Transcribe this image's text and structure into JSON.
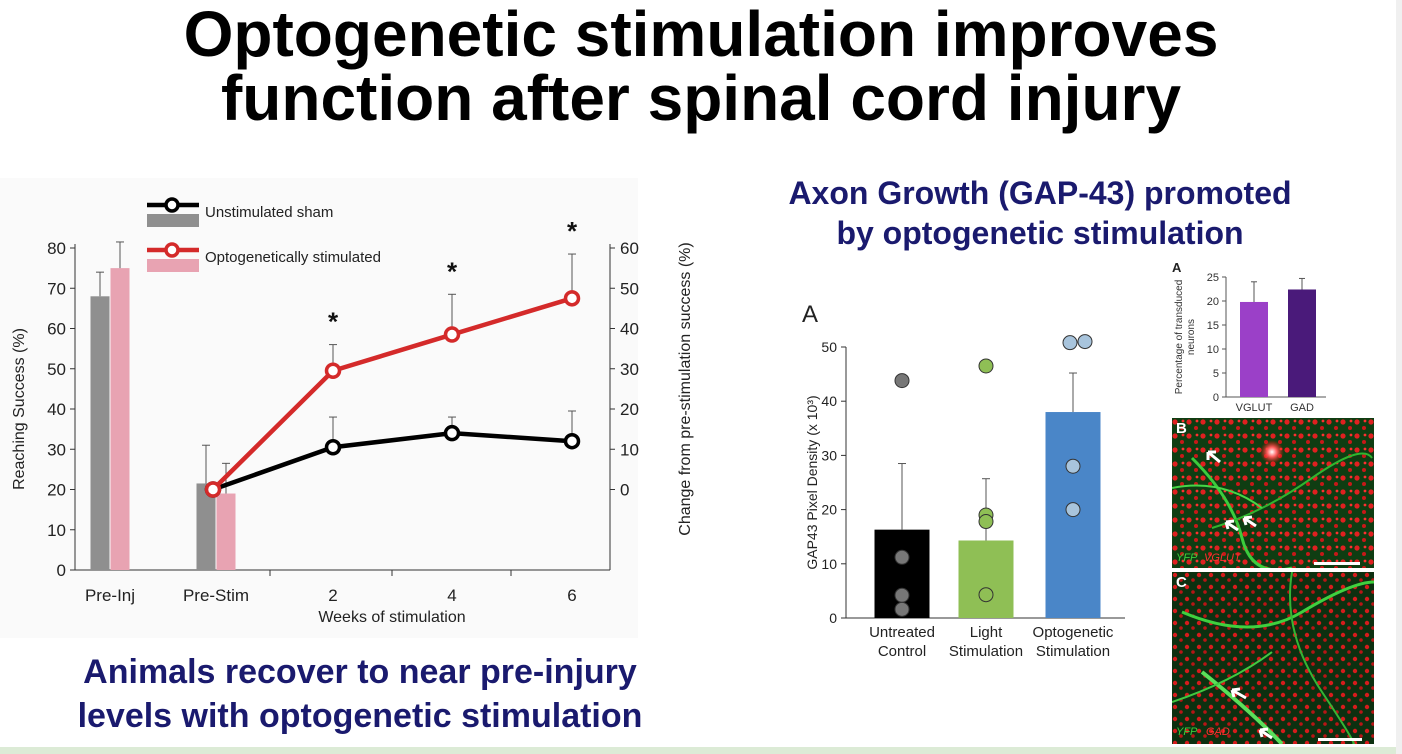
{
  "title": {
    "line1": "Optogenetic stimulation improves",
    "line2": "function after spinal cord injury"
  },
  "left_caption": {
    "line1": "Animals recover to near pre-injury",
    "line2": "levels with optogenetic stimulation"
  },
  "right_heading": {
    "line1": "Axon Growth (GAP-43) promoted",
    "line2": "by optogenetic stimulation"
  },
  "colors": {
    "sham_line": "#000000",
    "stim_line": "#d42a2a",
    "sham_bar": "#8f8f8f",
    "stim_bar": "#e8a3b2",
    "untreated": "#000000",
    "light": "#8fbf55",
    "opto": "#4a86c8",
    "vglut": "#9b40c8",
    "gad": "#4a1a7a",
    "heading": "#1a1a6e"
  },
  "chart_data": [
    {
      "type": "line",
      "legend": [
        "Unstimulated sham",
        "Optogenetically stimulated"
      ],
      "legend_position": "top-left",
      "categories": [
        "Pre-Inj",
        "Pre-Stim",
        "2",
        "4",
        "6"
      ],
      "xlabel": "Weeks of stimulation",
      "ylabel": "Reaching Success (%)",
      "ylabel_right": "Change from pre-stimulation success (%)",
      "ylim": [
        0,
        80
      ],
      "ylim_right": [
        -20,
        60
      ],
      "yticks": [
        0,
        10,
        20,
        30,
        40,
        50,
        60,
        70,
        80
      ],
      "yticks_right": [
        0,
        10,
        20,
        30,
        40,
        50,
        60
      ],
      "grid": false,
      "bars": [
        {
          "series": "Unstimulated sham",
          "categories": [
            "Pre-Inj",
            "Pre-Stim"
          ],
          "values": [
            68,
            21.5
          ],
          "errors": [
            6,
            9.5
          ]
        },
        {
          "series": "Optogenetically stimulated",
          "categories": [
            "Pre-Inj",
            "Pre-Stim"
          ],
          "values": [
            75,
            19
          ],
          "errors": [
            6.5,
            7.5
          ]
        }
      ],
      "series": [
        {
          "name": "Unstimulated sham",
          "x": [
            "Pre-Stim",
            "2",
            "4",
            "6"
          ],
          "values": [
            0,
            10.5,
            14,
            12
          ],
          "errors": [
            0,
            7.5,
            4,
            7.5
          ]
        },
        {
          "name": "Optogenetically stimulated",
          "x": [
            "Pre-Stim",
            "2",
            "4",
            "6"
          ],
          "values": [
            0,
            29.5,
            38.5,
            47.5
          ],
          "errors": [
            0,
            6.5,
            10,
            11
          ]
        }
      ],
      "significance": [
        {
          "x": "2",
          "label": "*"
        },
        {
          "x": "4",
          "label": "*"
        },
        {
          "x": "6",
          "label": "*"
        }
      ]
    },
    {
      "type": "bar",
      "panel_label": "A",
      "categories": [
        "Untreated Control",
        "Light Stimulation",
        "Optogenetic Stimulation"
      ],
      "category_lines": [
        [
          "Untreated",
          "Control"
        ],
        [
          "Light",
          "Stimulation"
        ],
        [
          "Optogenetic",
          "Stimulation"
        ]
      ],
      "values": [
        16.3,
        14.3,
        38
      ],
      "errors": [
        12.2,
        11.4,
        7.2
      ],
      "points": [
        [
          43.8,
          11.2,
          4.2,
          1.6
        ],
        [
          46.5,
          19,
          17.8,
          4.3
        ],
        [
          50.8,
          51,
          28,
          20
        ]
      ],
      "ylabel": "GAP43 Pixel  Density (x 10³)",
      "ylim": [
        0,
        50
      ],
      "yticks": [
        0,
        10,
        20,
        30,
        40,
        50
      ]
    },
    {
      "type": "bar",
      "panel_label": "A",
      "categories": [
        "VGLUT",
        "GAD"
      ],
      "values": [
        19.8,
        22.4
      ],
      "errors": [
        4.2,
        2.3
      ],
      "ylabel": "Percentage of transduced neurons",
      "ylim": [
        0,
        25
      ],
      "yticks": [
        0,
        5,
        10,
        15,
        20,
        25
      ]
    }
  ],
  "micrographs": [
    {
      "label": "B",
      "caption_green": "YFP",
      "caption_red": "VGLUT"
    },
    {
      "label": "C",
      "caption_green": "YFP",
      "caption_red": "GAD"
    }
  ]
}
